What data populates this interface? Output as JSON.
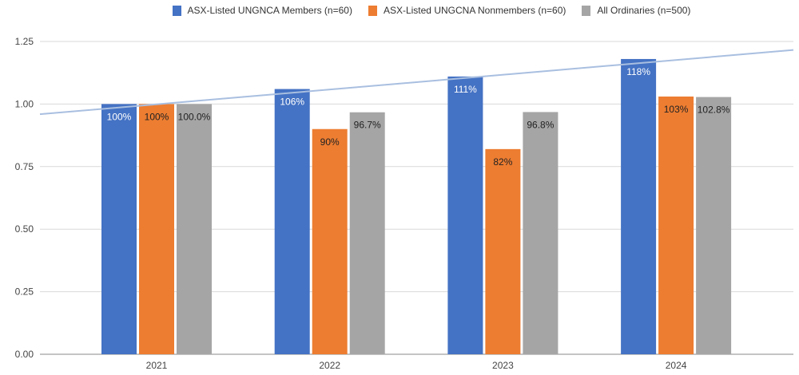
{
  "chart_data": {
    "type": "bar",
    "categories": [
      "2021",
      "2022",
      "2023",
      "2024"
    ],
    "series": [
      {
        "name": "ASX-Listed UNGNCA Members (n=60)",
        "color": "#4472c4",
        "values": [
          1.0,
          1.06,
          1.11,
          1.18
        ],
        "labels": [
          "100%",
          "106%",
          "111%",
          "118%"
        ],
        "label_color": "#ffffff"
      },
      {
        "name": "ASX-Listed UNGCNA Nonmembers (n=60)",
        "color": "#ed7d31",
        "values": [
          1.0,
          0.9,
          0.82,
          1.03
        ],
        "labels": [
          "100%",
          "90%",
          "82%",
          "103%"
        ],
        "label_color": "#222222"
      },
      {
        "name": "All Ordinaries (n=500)",
        "color": "#a5a5a5",
        "values": [
          1.0,
          0.967,
          0.968,
          1.028
        ],
        "labels": [
          "100.0%",
          "96.7%",
          "96.8%",
          "102.8%"
        ],
        "label_color": "#222222"
      }
    ],
    "trendline": {
      "series": "ASX-Listed UNGNCA Members (n=60)",
      "type": "linear",
      "color": "#a9bfe0"
    },
    "yticks": [
      "0.00",
      "0.25",
      "0.50",
      "0.75",
      "1.00",
      "1.25"
    ],
    "ylim": [
      0,
      1.25
    ],
    "grid": true,
    "legend": "top",
    "title": "",
    "xlabel": "",
    "ylabel": ""
  }
}
